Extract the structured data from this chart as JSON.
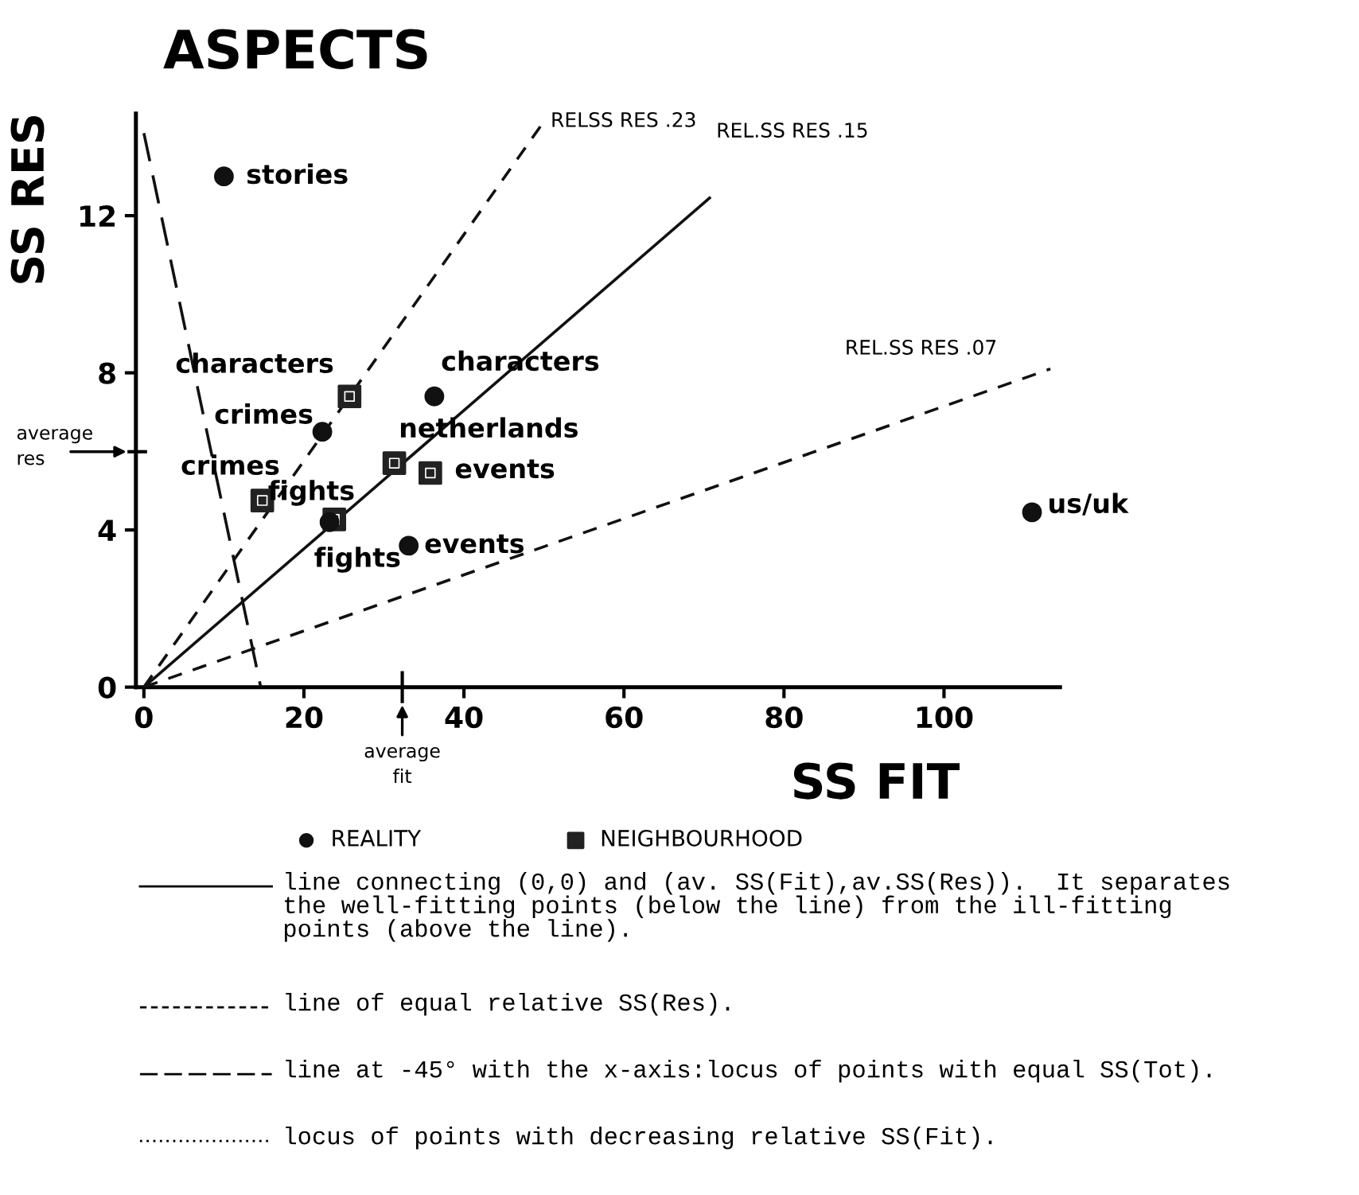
{
  "chart_data": {
    "type": "scatter",
    "title": "ASPECTS",
    "xlabel": "SS FIT",
    "ylabel": "SS RES",
    "xlim": [
      -1,
      114.5
    ],
    "ylim": [
      0,
      14.6
    ],
    "xticks": [
      0,
      20,
      40,
      60,
      80,
      100
    ],
    "yticks": [
      0,
      4,
      8,
      12
    ],
    "grid": false,
    "legend": "bottom",
    "series": [
      {
        "name": "REALITY",
        "marker": "circle",
        "color": "#111111",
        "x": [
          10,
          36.3,
          22.3,
          23.2,
          33.1,
          111
        ],
        "values": [
          13,
          7.4,
          6.5,
          4.2,
          3.6,
          4.45
        ]
      },
      {
        "name": "NEIGHBOURHOOD",
        "marker": "square",
        "color": "#222222",
        "x": [
          25.7,
          14.8,
          23.8,
          31.3,
          35.8
        ],
        "values": [
          7.4,
          4.75,
          4.27,
          5.7,
          5.45
        ]
      },
      {
        "type": "line",
        "line_style": "solid",
        "color": "#111111",
        "x": [
          0,
          70.7
        ],
        "values": [
          0,
          12.45
        ]
      },
      {
        "type": "line",
        "line_style": "dashed",
        "color": "#111111",
        "x": [
          0,
          50
        ],
        "values": [
          0,
          14.4
        ]
      },
      {
        "type": "line",
        "line_style": "dashed",
        "color": "#111111",
        "x": [
          0,
          113.3
        ],
        "values": [
          0,
          8.1
        ]
      },
      {
        "type": "line",
        "line_style": "longdash",
        "color": "#111111",
        "x": [
          0,
          14.6
        ],
        "values": [
          14.1,
          0
        ]
      }
    ],
    "annotations": [
      {
        "text": "stories",
        "x": 10,
        "y": 13
      },
      {
        "text": "characters",
        "x": 25.7,
        "y": 7.4
      },
      {
        "text": "characters",
        "x": 36.3,
        "y": 7.4
      },
      {
        "text": "crimes",
        "x": 22.3,
        "y": 6.5
      },
      {
        "text": "netherlands",
        "x": 31.3,
        "y": 5.7
      },
      {
        "text": "events",
        "x": 35.8,
        "y": 5.45
      },
      {
        "text": "crimes",
        "x": 14.8,
        "y": 4.75
      },
      {
        "text": "fights",
        "x": 23.8,
        "y": 4.27
      },
      {
        "text": "fights",
        "x": 23.2,
        "y": 4.2
      },
      {
        "text": "events",
        "x": 33.1,
        "y": 3.6
      },
      {
        "text": "us/uk",
        "x": 111,
        "y": 4.45
      },
      {
        "text": "RELSS RES .23",
        "x": 50,
        "y": 14.4
      },
      {
        "text": "REL.SS RES .07",
        "x": 113.3,
        "y": 8.1
      },
      "REL.SS RES .15",
      "average\nfit",
      "average\nres",
      "line connecting (0,0) and (av. SS(Fit),av.SS(Res)).  It separates\nthe well-fitting points (below the line) from the ill-fitting\npoints (above the line).",
      "line of equal relative SS(Res).",
      "line at -45° with the x-axis:locus of points with equal SS(Tot).",
      "locus of points with decreasing relative SS(Fit)."
    ]
  }
}
